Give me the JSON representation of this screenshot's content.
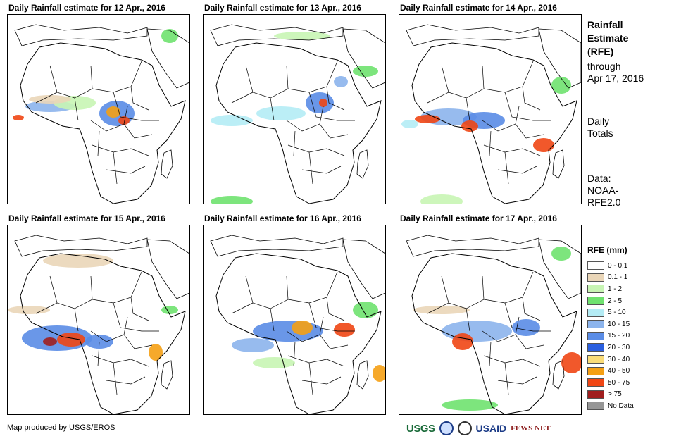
{
  "panels": [
    {
      "title": "Daily Rainfall estimate for 12 Apr., 2016"
    },
    {
      "title": "Daily Rainfall estimate for 13 Apr., 2016"
    },
    {
      "title": "Daily Rainfall estimate for 14 Apr., 2016"
    },
    {
      "title": "Daily Rainfall estimate for 15 Apr., 2016"
    },
    {
      "title": "Daily Rainfall estimate for 16 Apr., 2016"
    },
    {
      "title": "Daily Rainfall estimate for 17 Apr., 2016"
    }
  ],
  "sidebar": {
    "title_lines": [
      "Rainfall",
      "Estimate",
      "(RFE)"
    ],
    "through_lines": [
      "through",
      "Apr 17, 2016"
    ],
    "daily_lines": [
      "Daily",
      "Totals"
    ],
    "data_lines": [
      "Data:",
      "NOAA-",
      "RFE2.0"
    ]
  },
  "legend": {
    "title": "RFE (mm)",
    "items": [
      {
        "label": "0 - 0.1",
        "color": "#ffffff"
      },
      {
        "label": "0.1 - 1",
        "color": "#ead6b8"
      },
      {
        "label": "1 - 2",
        "color": "#c8f5b4"
      },
      {
        "label": "2 - 5",
        "color": "#6fe26f"
      },
      {
        "label": "5 - 10",
        "color": "#b4ecf5"
      },
      {
        "label": "10 - 15",
        "color": "#8cb4ec"
      },
      {
        "label": "15 - 20",
        "color": "#5a8ce6"
      },
      {
        "label": "20 - 30",
        "color": "#2a5fe0"
      },
      {
        "label": "30 - 40",
        "color": "#fadc78"
      },
      {
        "label": "40 - 50",
        "color": "#f5a014"
      },
      {
        "label": "50 - 75",
        "color": "#f04614"
      },
      {
        "label": "> 75",
        "color": "#a01e1e"
      },
      {
        "label": "No Data",
        "color": "#969696"
      }
    ]
  },
  "credit": "Map produced by USGS/EROS",
  "logos": {
    "usgs": "USGS",
    "usaid": "USAID",
    "fews": "FEWS NET"
  }
}
